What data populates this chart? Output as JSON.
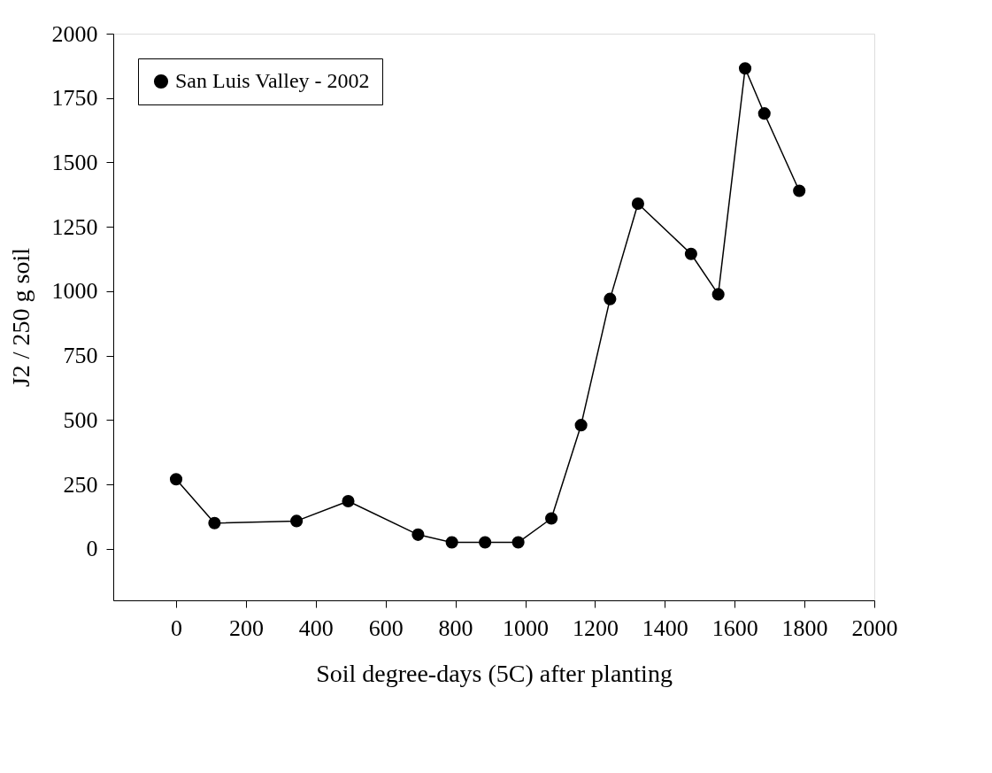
{
  "chart_data": {
    "type": "line",
    "xlabel": "Soil degree-days (5C) after planting",
    "ylabel": "J2 / 250 g soil",
    "x": [
      0,
      110,
      345,
      493,
      693,
      790,
      885,
      980,
      1075,
      1160,
      1243,
      1323,
      1475,
      1553,
      1630,
      1685,
      1785
    ],
    "series": [
      {
        "name": "San Luis Valley - 2002",
        "color": "#000000",
        "values": [
          270,
          100,
          108,
          185,
          55,
          25,
          25,
          25,
          118,
          480,
          970,
          1340,
          1145,
          988,
          1865,
          1690,
          1390
        ]
      }
    ],
    "xlim": [
      -180,
      2000
    ],
    "xticks": [
      0,
      200,
      400,
      600,
      800,
      1000,
      1200,
      1400,
      1600,
      1800,
      2000
    ],
    "ylim": [
      -200,
      2000
    ],
    "yticks": [
      0,
      250,
      500,
      750,
      1000,
      1250,
      1500,
      1750,
      2000
    ],
    "marker": "circle",
    "line_style": "solid",
    "grid": false,
    "legend": "top left"
  }
}
